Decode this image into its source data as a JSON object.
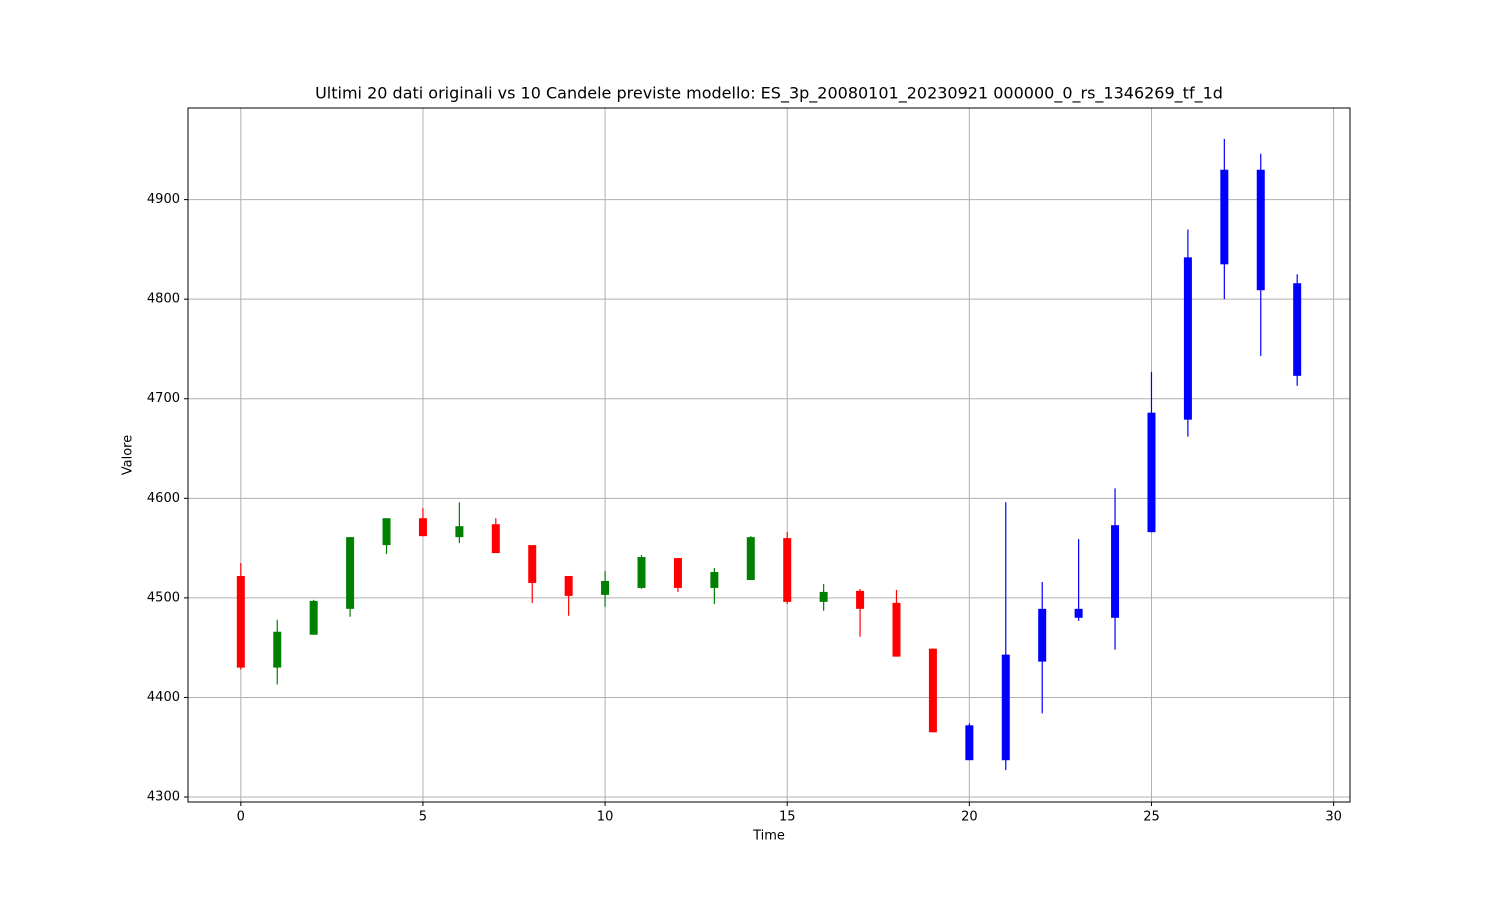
{
  "chart_data": {
    "type": "candlestick",
    "title": "Ultimi 20 dati originali vs 10 Candele previste modello: ES_3p_20080101_20230921 000000_0_rs_1346269_tf_1d",
    "x_label": "Time",
    "y_label": "Valore",
    "xlim": [
      -1.45,
      30.45
    ],
    "ylim": [
      4295,
      4992
    ],
    "xticks": [
      0,
      5,
      10,
      15,
      20,
      25,
      30
    ],
    "yticks": [
      4300,
      4400,
      4500,
      4600,
      4700,
      4800,
      4900
    ],
    "grid": true,
    "series": [
      {
        "color_up": "green",
        "color_down": "red",
        "x": [
          0,
          1,
          2,
          3,
          4,
          5,
          6,
          7,
          8,
          9,
          10,
          11,
          12,
          13,
          14,
          15,
          16,
          17,
          18,
          19
        ],
        "open": [
          4522,
          4430,
          4463,
          4489,
          4553,
          4580,
          4561,
          4574,
          4553,
          4522,
          4503,
          4510,
          4540,
          4510,
          4518,
          4560,
          4496,
          4507,
          4495,
          4449
        ],
        "high": [
          4535,
          4478,
          4498,
          4561,
          4580,
          4590,
          4596,
          4580,
          4553,
          4522,
          4527,
          4543,
          4540,
          4530,
          4562,
          4566,
          4514,
          4509,
          4508,
          4449
        ],
        "low": [
          4428,
          4413,
          4463,
          4481,
          4544,
          4562,
          4555,
          4545,
          4495,
          4482,
          4491,
          4509,
          4506,
          4494,
          4518,
          4494,
          4487,
          4461,
          4441,
          4365
        ],
        "close": [
          4430,
          4466,
          4497,
          4561,
          4580,
          4562,
          4572,
          4545,
          4515,
          4502,
          4517,
          4541,
          4510,
          4526,
          4561,
          4496,
          4506,
          4489,
          4441,
          4365
        ]
      },
      {
        "color": "blue",
        "x": [
          20,
          21,
          22,
          23,
          24,
          25,
          26,
          27,
          28,
          29
        ],
        "open": [
          4372,
          4337,
          4436,
          4480,
          4480,
          4566,
          4679,
          4835,
          4930,
          4816
        ],
        "high": [
          4374,
          4596,
          4516,
          4559,
          4610,
          4727,
          4870,
          4961,
          4946,
          4825
        ],
        "low": [
          4337,
          4327,
          4384,
          4477,
          4448,
          4566,
          4662,
          4800,
          4743,
          4713
        ],
        "close": [
          4337,
          4443,
          4489,
          4489,
          4573,
          4686,
          4842,
          4930,
          4809,
          4723
        ]
      }
    ]
  }
}
